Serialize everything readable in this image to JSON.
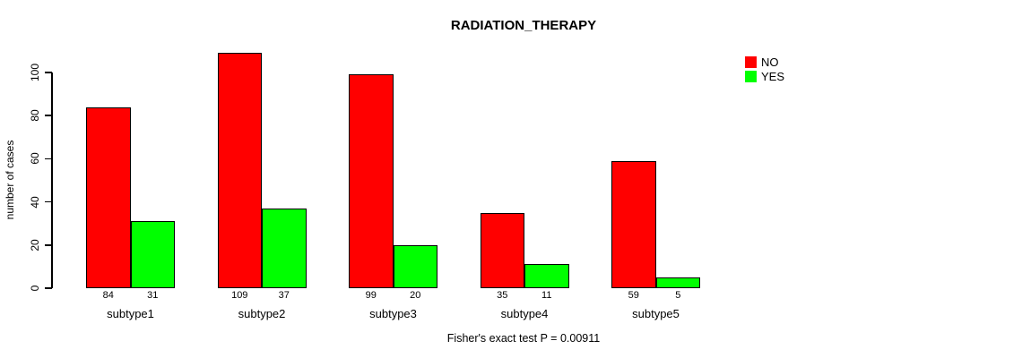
{
  "title": "RADIATION_THERAPY",
  "caption": "Fisher's exact test P = 0.00911",
  "legend": [
    {
      "label": "NO",
      "color": "#FF0000"
    },
    {
      "label": "YES",
      "color": "#00FF00"
    }
  ],
  "chart_data": {
    "type": "bar",
    "title": "RADIATION_THERAPY",
    "categories": [
      "subtype1",
      "subtype2",
      "subtype3",
      "subtype4",
      "subtype5"
    ],
    "series": [
      {
        "name": "NO",
        "color": "#FF0000",
        "values": [
          84,
          109,
          99,
          35,
          59
        ]
      },
      {
        "name": "YES",
        "color": "#00FF00",
        "values": [
          31,
          37,
          20,
          11,
          5
        ]
      }
    ],
    "bar_value_labels": [
      [
        84,
        109,
        99,
        35,
        59
      ],
      [
        31,
        37,
        20,
        11,
        5
      ]
    ],
    "xlabel": "",
    "ylabel": "number of cases",
    "yticks": [
      0,
      20,
      40,
      60,
      80,
      100
    ],
    "ylim": [
      0,
      109
    ],
    "grid": false,
    "legend_position": "top-right",
    "annotation": "Fisher's exact test P = 0.00911"
  }
}
